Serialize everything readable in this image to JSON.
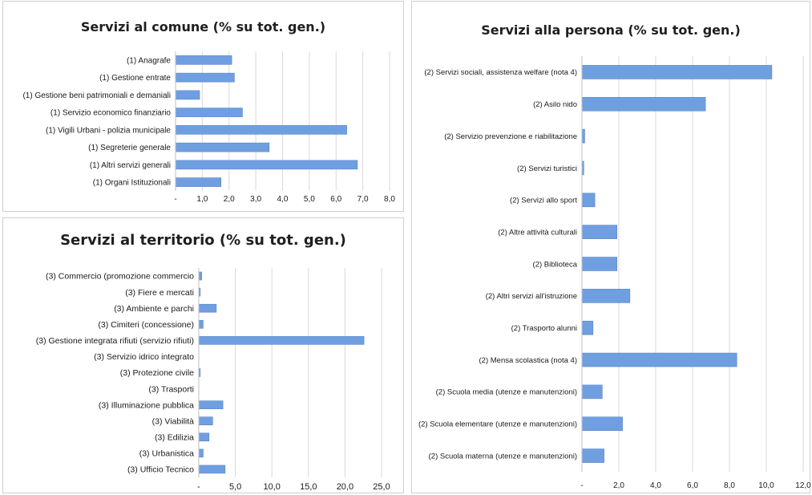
{
  "chart_data": [
    {
      "type": "bar",
      "orientation": "horizontal",
      "title": "Servizi al comune (% su tot. gen.)",
      "categories": [
        "(1) Anagrafe",
        "(1) Gestione entrate",
        "(1) Gestione beni patrimoniali e demaniali",
        "(1) Servizio economico finanziario",
        "(1)  Vigili Urbani - polizia municipale",
        "(1) Segreterie generale",
        "(1) Altri servizi generali",
        "(1) Organi Istituzionali"
      ],
      "values": [
        2.1,
        2.2,
        0.9,
        2.5,
        6.4,
        3.5,
        6.8,
        1.7
      ],
      "xlim": [
        0,
        8
      ],
      "ticks": [
        "-",
        "1,0",
        "2,0",
        "3,0",
        "4,0",
        "5,0",
        "6,0",
        "7,0",
        "8,0"
      ],
      "grid": true,
      "bar_color": "#6f9fe0"
    },
    {
      "type": "bar",
      "orientation": "horizontal",
      "title": "Servizi al territorio (% su tot. gen.)",
      "categories": [
        "(3) Commercio (promozione commercio",
        "(3) Fiere e mercati",
        "(3) Ambiente e parchi",
        "(3) Cimiteri (concessione)",
        "(3) Gestione integrata rifiuti (servizio rifiuti)",
        "(3) Servizio idrico integrato",
        "(3) Protezione civile",
        "(3) Trasporti",
        "(3) Illuminazione pubblica",
        "(3) Viabilità",
        "(3) Edilizia",
        "(3) Urbanistica",
        "(3) Ufficio Tecnico"
      ],
      "values": [
        0.4,
        0.2,
        2.4,
        0.6,
        22.6,
        0.0,
        0.2,
        0.0,
        3.3,
        1.9,
        1.4,
        0.6,
        3.6
      ],
      "xlim": [
        0,
        25
      ],
      "ticks": [
        "-",
        "5,0",
        "10,0",
        "15,0",
        "20,0",
        "25,0"
      ],
      "grid": true,
      "bar_color": "#6f9fe0"
    },
    {
      "type": "bar",
      "orientation": "horizontal",
      "title": "Servizi alla persona (% su tot. gen.)",
      "categories": [
        "(2) Servizi sociali, assistenza welfare (nota 4)",
        "(2) Asilo nido",
        "(2) Servizio prevenzione e riabilitazione",
        "(2) Servizi turistici",
        "(2) Servizi allo sport",
        "(2) Altre attività culturali",
        "(2) Biblioteca",
        "(2) Altri servizi all'istruzione",
        "(2) Trasporto alunni",
        "(2) Mensa scolastica (nota 4)",
        "(2) Scuola media  (utenze e manutenzioni)",
        "(2) Scuola elementare  (utenze e manutenzioni)",
        "(2) Scuola materna (utenze e manutenzioni)"
      ],
      "values": [
        10.3,
        6.7,
        0.15,
        0.1,
        0.7,
        1.9,
        1.9,
        2.6,
        0.6,
        8.4,
        1.1,
        2.2,
        1.2
      ],
      "xlim": [
        0,
        12
      ],
      "ticks": [
        "-",
        "2,0",
        "4,0",
        "6,0",
        "8,0",
        "10,0",
        "12,0"
      ],
      "grid": true,
      "bar_color": "#6f9fe0"
    }
  ]
}
